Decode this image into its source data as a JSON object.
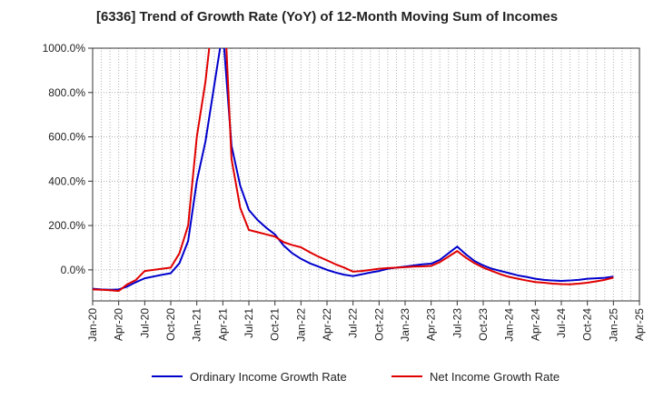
{
  "chart_data": {
    "type": "line",
    "title": "[6336]  Trend of Growth Rate (YoY) of 12-Month Moving Sum of Incomes",
    "xlabel": "",
    "ylabel": "",
    "ylim": [
      -140,
      1000
    ],
    "y_ticks": [
      "0.0%",
      "200.0%",
      "400.0%",
      "600.0%",
      "800.0%",
      "1000.0%"
    ],
    "y_tick_values": [
      0,
      200,
      400,
      600,
      800,
      1000
    ],
    "x_ticks": [
      "Jan-20",
      "Apr-20",
      "Jul-20",
      "Oct-20",
      "Jan-21",
      "Apr-21",
      "Jul-21",
      "Oct-21",
      "Jan-22",
      "Apr-22",
      "Jul-22",
      "Oct-22",
      "Jan-23",
      "Apr-23",
      "Jul-23",
      "Oct-23",
      "Jan-24",
      "Apr-24",
      "Jul-24",
      "Oct-24",
      "Jan-25",
      "Apr-25"
    ],
    "grid": true,
    "legend_position": "bottom",
    "x": [
      "Jan-20",
      "Feb-20",
      "Mar-20",
      "Apr-20",
      "May-20",
      "Jun-20",
      "Jul-20",
      "Aug-20",
      "Sep-20",
      "Oct-20",
      "Nov-20",
      "Dec-20",
      "Jan-21",
      "Feb-21",
      "Mar-21",
      "Apr-21",
      "May-21",
      "Jun-21",
      "Jul-21",
      "Aug-21",
      "Sep-21",
      "Oct-21",
      "Nov-21",
      "Dec-21",
      "Jan-22",
      "Feb-22",
      "Mar-22",
      "Apr-22",
      "May-22",
      "Jun-22",
      "Jul-22",
      "Aug-22",
      "Sep-22",
      "Oct-22",
      "Nov-22",
      "Dec-22",
      "Jan-23",
      "Feb-23",
      "Mar-23",
      "Apr-23",
      "May-23",
      "Jun-23",
      "Jul-23",
      "Aug-23",
      "Sep-23",
      "Oct-23",
      "Nov-23",
      "Dec-23",
      "Jan-24",
      "Feb-24",
      "Mar-24",
      "Apr-24",
      "May-24",
      "Jun-24",
      "Jul-24",
      "Aug-24",
      "Sep-24",
      "Oct-24",
      "Nov-24",
      "Dec-24",
      "Jan-25"
    ],
    "series": [
      {
        "name": "Ordinary Income Growth Rate",
        "color": "#0000cc",
        "values": [
          -85,
          -88,
          -90,
          -88,
          -75,
          -55,
          -38,
          -30,
          -22,
          -15,
          30,
          130,
          400,
          580,
          830,
          1080,
          560,
          380,
          270,
          225,
          190,
          160,
          110,
          75,
          50,
          30,
          15,
          0,
          -12,
          -22,
          -28,
          -20,
          -12,
          -5,
          5,
          10,
          15,
          20,
          25,
          28,
          45,
          75,
          105,
          70,
          40,
          20,
          5,
          -5,
          -15,
          -25,
          -32,
          -40,
          -45,
          -48,
          -50,
          -48,
          -45,
          -40,
          -38,
          -36,
          -30
        ]
      },
      {
        "name": "Net Income Growth Rate",
        "color": "#e00000",
        "values": [
          -88,
          -90,
          -92,
          -95,
          -65,
          -45,
          -5,
          0,
          5,
          10,
          75,
          200,
          600,
          850,
          1200,
          1350,
          500,
          280,
          180,
          170,
          160,
          150,
          125,
          112,
          102,
          80,
          60,
          43,
          25,
          10,
          -8,
          -5,
          0,
          5,
          8,
          10,
          12,
          15,
          16,
          18,
          35,
          60,
          85,
          55,
          30,
          10,
          -5,
          -20,
          -32,
          -40,
          -48,
          -55,
          -58,
          -62,
          -64,
          -65,
          -62,
          -58,
          -52,
          -45,
          -35
        ]
      }
    ]
  }
}
